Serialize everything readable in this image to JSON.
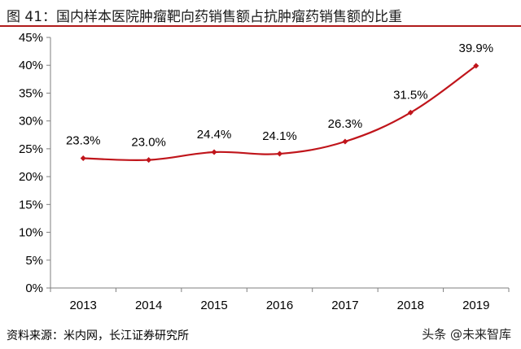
{
  "title": "图 41：国内样本医院肿瘤靶向药销售额占抗肿瘤药销售额的比重",
  "chart_data": {
    "type": "line",
    "categories": [
      "2013",
      "2014",
      "2015",
      "2016",
      "2017",
      "2018",
      "2019"
    ],
    "series": [
      {
        "values": [
          23.3,
          23.0,
          24.4,
          24.1,
          26.3,
          31.5,
          39.9
        ],
        "labels": [
          "23.3%",
          "23.0%",
          "24.4%",
          "24.1%",
          "26.3%",
          "31.5%",
          "39.9%"
        ]
      }
    ],
    "yticks": [
      "0%",
      "5%",
      "10%",
      "15%",
      "20%",
      "25%",
      "30%",
      "35%",
      "40%",
      "45%"
    ],
    "ylim": [
      0,
      45
    ],
    "grid": false,
    "line_color": "#c0151b"
  },
  "source": "资料来源：米内网，长江证券研究所",
  "watermark": "头条 @未来智库"
}
